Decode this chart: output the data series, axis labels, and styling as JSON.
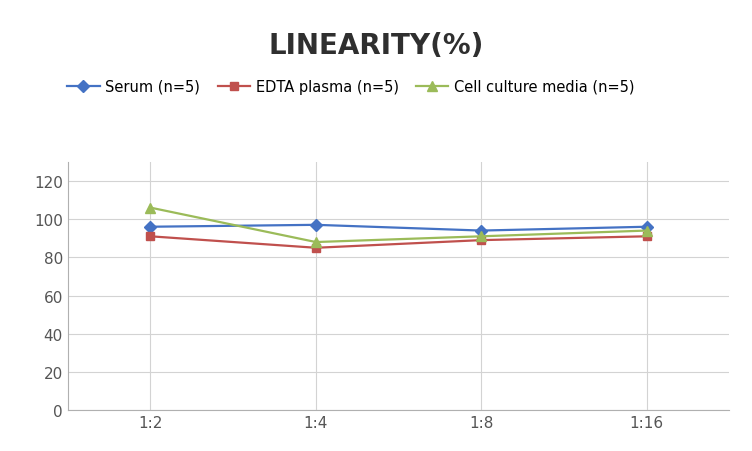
{
  "title": "LINEARITY(%)",
  "x_labels": [
    "1:2",
    "1:4",
    "1:8",
    "1:16"
  ],
  "series": [
    {
      "label": "Serum (n=5)",
      "values": [
        96,
        97,
        94,
        96
      ],
      "color": "#4472C4",
      "marker": "D",
      "marker_size": 6,
      "linewidth": 1.6
    },
    {
      "label": "EDTA plasma (n=5)",
      "values": [
        91,
        85,
        89,
        91
      ],
      "color": "#C0504D",
      "marker": "s",
      "marker_size": 6,
      "linewidth": 1.6
    },
    {
      "label": "Cell culture media (n=5)",
      "values": [
        106,
        88,
        91,
        94
      ],
      "color": "#9BBB59",
      "marker": "^",
      "marker_size": 7,
      "linewidth": 1.6
    }
  ],
  "ylim": [
    0,
    130
  ],
  "yticks": [
    0,
    20,
    40,
    60,
    80,
    100,
    120
  ],
  "background_color": "#ffffff",
  "grid_color": "#d3d3d3",
  "title_fontsize": 20,
  "legend_fontsize": 10.5,
  "tick_fontsize": 11
}
